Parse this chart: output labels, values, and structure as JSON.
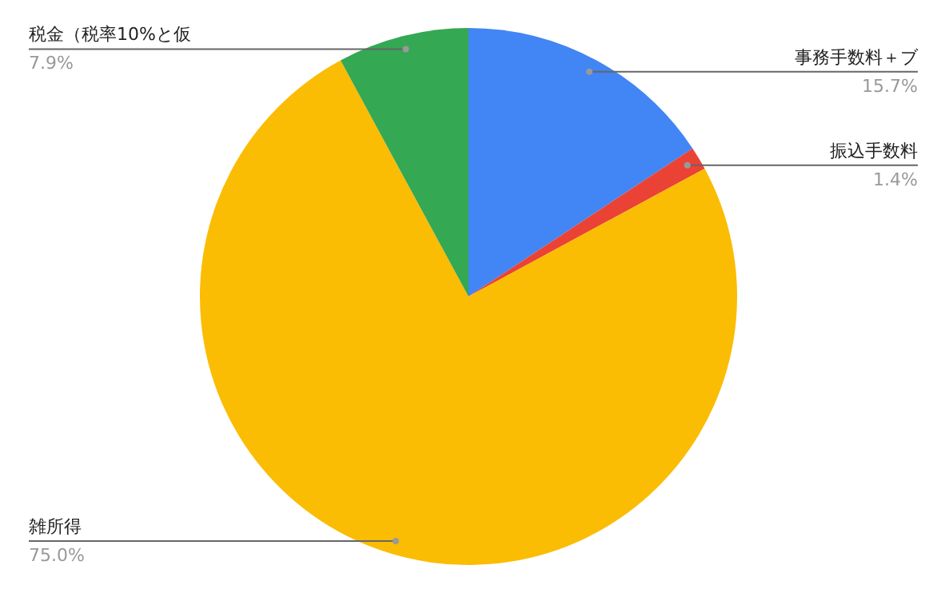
{
  "chart_data": {
    "type": "pie",
    "categories": [
      "事務手数料＋ブ",
      "振込手数料",
      "雑所得",
      "税金（税率10%と仮"
    ],
    "values": [
      15.7,
      1.4,
      75.0,
      7.9
    ],
    "colors": [
      "#4285f4",
      "#ea4335",
      "#fbbc04",
      "#34a853"
    ],
    "value_labels": [
      "15.7%",
      "1.4%",
      "75.0%",
      "7.9%"
    ],
    "legend": false
  }
}
